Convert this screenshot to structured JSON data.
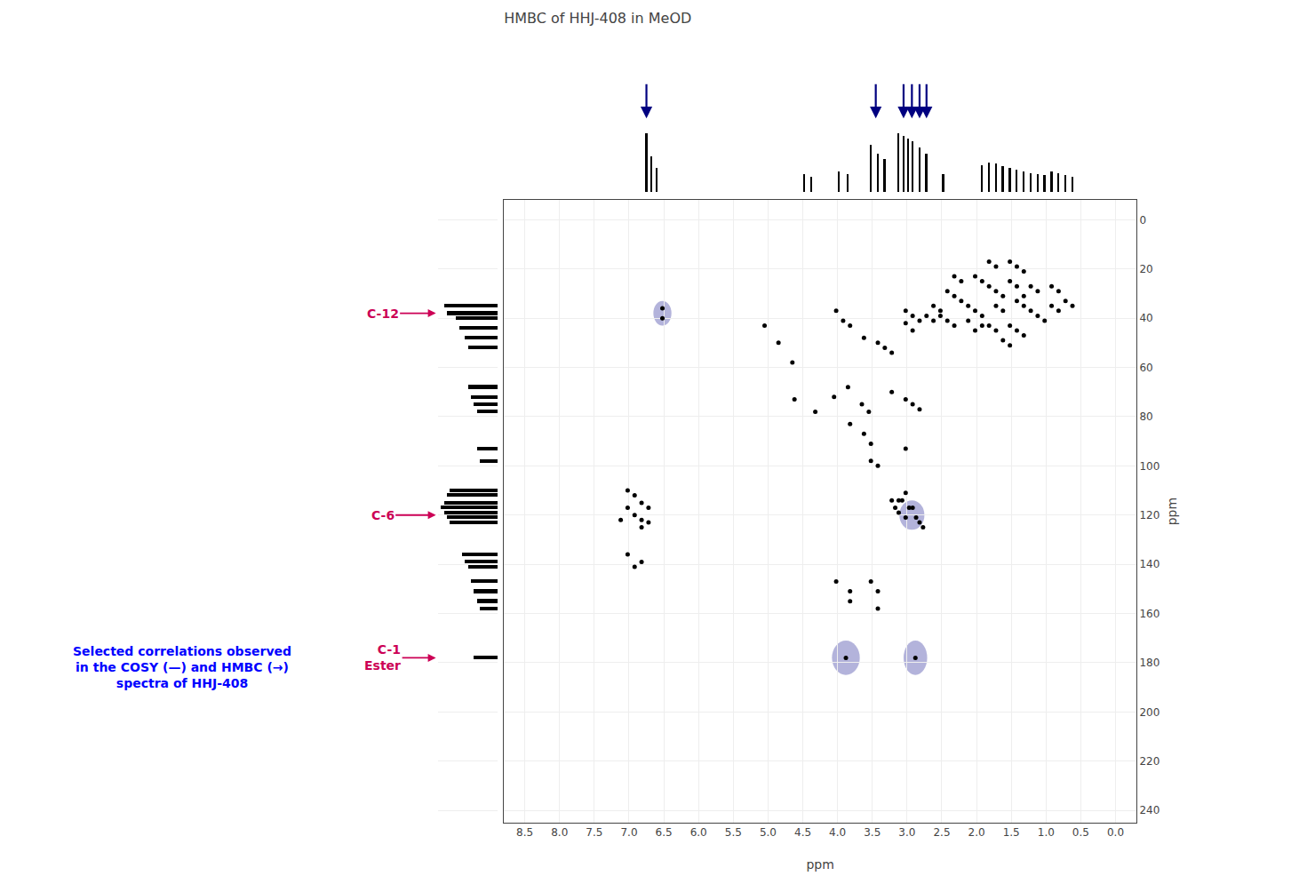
{
  "chart_data": {
    "type": "scatter",
    "title": "HMBC of HHJ-408 in MeOD",
    "x_label": "ppm",
    "y_label": "ppm",
    "color": "#000000",
    "x": [
      6.52,
      6.52,
      5.05,
      4.85,
      4.65,
      4.05,
      3.85,
      3.65,
      3.55,
      3.82,
      3.62,
      3.42,
      3.32,
      3.22,
      3.02,
      2.92,
      2.82,
      4.02,
      3.92,
      4.62,
      4.32,
      3.82,
      3.62,
      3.52,
      3.22,
      3.02,
      2.92,
      2.82,
      3.52,
      3.42,
      3.02,
      7.02,
      6.92,
      6.82,
      6.72,
      7.02,
      6.92,
      6.82,
      7.12,
      6.72,
      6.82,
      3.02,
      3.12,
      2.97,
      3.07,
      3.12,
      3.02,
      2.92,
      2.87,
      2.82,
      2.77,
      3.22,
      3.17,
      7.02,
      6.82,
      6.92,
      4.02,
      3.82,
      3.88,
      2.88,
      3.52,
      3.42,
      3.82,
      3.42,
      1.52,
      1.42,
      1.32,
      1.82,
      1.72,
      1.62,
      1.22,
      1.12,
      1.02,
      0.92,
      0.82,
      1.52,
      1.42,
      1.32,
      2.02,
      1.92,
      1.62,
      1.52,
      2.42,
      2.32,
      2.52,
      2.42,
      2.32,
      1.82,
      1.72,
      0.92,
      0.82,
      1.22,
      1.12,
      1.32,
      2.02,
      1.92,
      2.12,
      3.02,
      2.92,
      1.52,
      1.42,
      2.22,
      2.12,
      1.72,
      1.62,
      0.72,
      0.62,
      1.82,
      1.72,
      2.32,
      2.22,
      1.42,
      1.32,
      2.62,
      2.52,
      1.92,
      2.02,
      2.72,
      2.62
    ],
    "values": [
      36,
      40,
      43,
      50,
      58,
      72,
      68,
      75,
      78,
      43,
      48,
      50,
      52,
      54,
      42,
      45,
      41,
      37,
      41,
      73,
      78,
      83,
      87,
      91,
      70,
      73,
      75,
      77,
      98,
      100,
      93,
      110,
      112,
      115,
      117,
      117,
      120,
      122,
      122,
      123,
      125,
      111,
      114,
      117,
      114,
      119,
      121,
      117,
      121,
      123,
      125,
      114,
      117,
      136,
      139,
      141,
      147,
      151,
      178,
      178,
      147,
      151,
      155,
      158,
      17,
      19,
      21,
      27,
      29,
      31,
      37,
      39,
      41,
      35,
      37,
      43,
      45,
      47,
      23,
      25,
      49,
      51,
      29,
      31,
      39,
      41,
      43,
      43,
      45,
      27,
      29,
      27,
      29,
      31,
      37,
      39,
      41,
      37,
      39,
      25,
      27,
      33,
      35,
      35,
      37,
      33,
      35,
      17,
      19,
      23,
      25,
      33,
      35,
      35,
      37,
      43,
      45,
      39,
      41
    ],
    "xlim": [
      8.8,
      -0.3
    ],
    "ylim": [
      245,
      -8
    ],
    "xticks": [
      8.5,
      8.0,
      7.5,
      7.0,
      6.5,
      6.0,
      5.5,
      5.0,
      4.5,
      4.0,
      3.5,
      3.0,
      2.5,
      2.0,
      1.5,
      1.0,
      0.5,
      0.0
    ],
    "yticks": [
      0,
      20,
      40,
      60,
      80,
      100,
      120,
      140,
      160,
      180,
      200,
      220,
      240
    ],
    "grid": true,
    "highlights": [
      {
        "x": 6.52,
        "y": 38,
        "rx": 0.13,
        "ry": 5,
        "color": "#6868b8"
      },
      {
        "x": 3.88,
        "y": 178,
        "rx": 0.2,
        "ry": 7,
        "color": "#6868b8"
      },
      {
        "x": 2.88,
        "y": 178,
        "rx": 0.17,
        "ry": 7,
        "color": "#6868b8"
      },
      {
        "x": 2.93,
        "y": 120,
        "rx": 0.18,
        "ry": 6,
        "color": "#6868b8"
      }
    ],
    "top_spectrum": {
      "x": [
        6.75,
        6.68,
        6.6,
        4.48,
        4.38,
        3.98,
        3.85,
        3.52,
        3.42,
        3.32,
        3.12,
        3.05,
        2.98,
        2.92,
        2.82,
        2.72,
        2.48,
        1.92,
        1.82,
        1.72,
        1.62,
        1.52,
        1.42,
        1.32,
        1.22,
        1.12,
        1.02,
        0.92,
        0.82,
        0.72,
        0.62
      ],
      "values": [
        1.0,
        0.6,
        0.4,
        0.3,
        0.25,
        0.35,
        0.3,
        0.8,
        0.65,
        0.55,
        1.0,
        0.95,
        0.9,
        0.85,
        0.75,
        0.65,
        0.3,
        0.45,
        0.5,
        0.48,
        0.44,
        0.4,
        0.38,
        0.35,
        0.32,
        0.3,
        0.28,
        0.35,
        0.32,
        0.28,
        0.25
      ],
      "color": "#000000"
    },
    "side_spectrum": {
      "y": [
        35,
        38,
        40,
        44,
        48,
        52,
        68,
        72,
        75,
        78,
        93,
        98,
        110,
        112,
        115,
        117,
        119,
        121,
        123,
        136,
        139,
        141,
        147,
        151,
        155,
        158,
        178
      ],
      "values": [
        0.9,
        0.85,
        0.7,
        0.65,
        0.55,
        0.5,
        0.5,
        0.45,
        0.4,
        0.35,
        0.35,
        0.3,
        0.8,
        0.85,
        0.9,
        0.95,
        0.9,
        0.85,
        0.8,
        0.6,
        0.55,
        0.5,
        0.45,
        0.4,
        0.35,
        0.3,
        0.4
      ],
      "color": "#000000"
    },
    "top_arrows": {
      "x": [
        6.75,
        3.45,
        3.05,
        2.93,
        2.82,
        2.72
      ],
      "color": "#000080"
    },
    "labels": [
      {
        "text": "C-12",
        "y": 38,
        "color": "#cc0055"
      },
      {
        "text": "C-6",
        "y": 120,
        "color": "#cc0055"
      },
      {
        "text": "C-1\nEster",
        "y": 178,
        "color": "#cc0055"
      }
    ],
    "caption": {
      "text": "Selected correlations observed\nin the COSY (—) and HMBC (→)\nspectra of HHJ-408",
      "color": "#0000ff"
    }
  }
}
